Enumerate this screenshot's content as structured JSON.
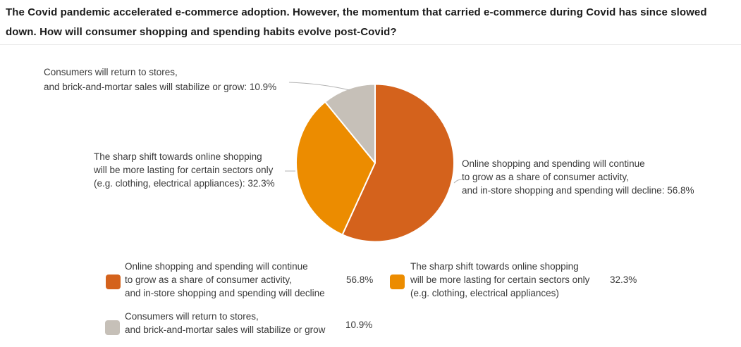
{
  "title": "The Covid pandemic accelerated e-commerce adoption. However, the momentum that carried e-commerce during Covid has since slowed\ndown. How will consumer shopping and spending habits evolve post-Covid?",
  "chart_data": {
    "type": "pie",
    "categories": [
      "Online shopping and spending will continue to grow as a share of consumer activity, and in-store shopping and spending will decline",
      "The sharp shift towards online shopping will be more lasting for certain sectors only (e.g. clothing, electrical appliances)",
      "Consumers will return to stores, and brick-and-mortar sales will stabilize or grow"
    ],
    "values": [
      56.8,
      32.3,
      10.9
    ],
    "colors": [
      "#D4621C",
      "#EC8C00",
      "#C6C0B8"
    ],
    "start_angle_deg": 0,
    "direction": "clockwise",
    "legend_position": "bottom",
    "data_labels": "outside callouts"
  },
  "callouts": {
    "gray": "Consumers will return to stores,\nand brick-and-mortar sales will stabilize or grow: 10.9%",
    "orange": "The sharp shift towards online shopping\nwill be more lasting for certain sectors only\n(e.g. clothing, electrical appliances): 32.3%",
    "dark": "Online shopping and spending will continue\nto grow as a share of consumer activity,\nand in-store shopping and spending will decline: 56.8%"
  },
  "legend": {
    "items": [
      {
        "label": "Online shopping and spending will continue\nto grow as a share of consumer activity,\nand in-store shopping and spending will decline",
        "value": "56.8%",
        "color": "#D4621C"
      },
      {
        "label": "The sharp shift towards online shopping\nwill be more lasting for certain sectors only\n(e.g. clothing, electrical appliances)",
        "value": "32.3%",
        "color": "#EC8C00"
      },
      {
        "label": "Consumers will return to stores,\nand brick-and-mortar sales will stabilize or grow",
        "value": "10.9%",
        "color": "#C6C0B8"
      }
    ]
  },
  "colors": {
    "leader_line": "#b3b3b3",
    "divider": "#e8e8e8",
    "text": "#3a3a3a",
    "title_text": "#1b1b1b"
  }
}
